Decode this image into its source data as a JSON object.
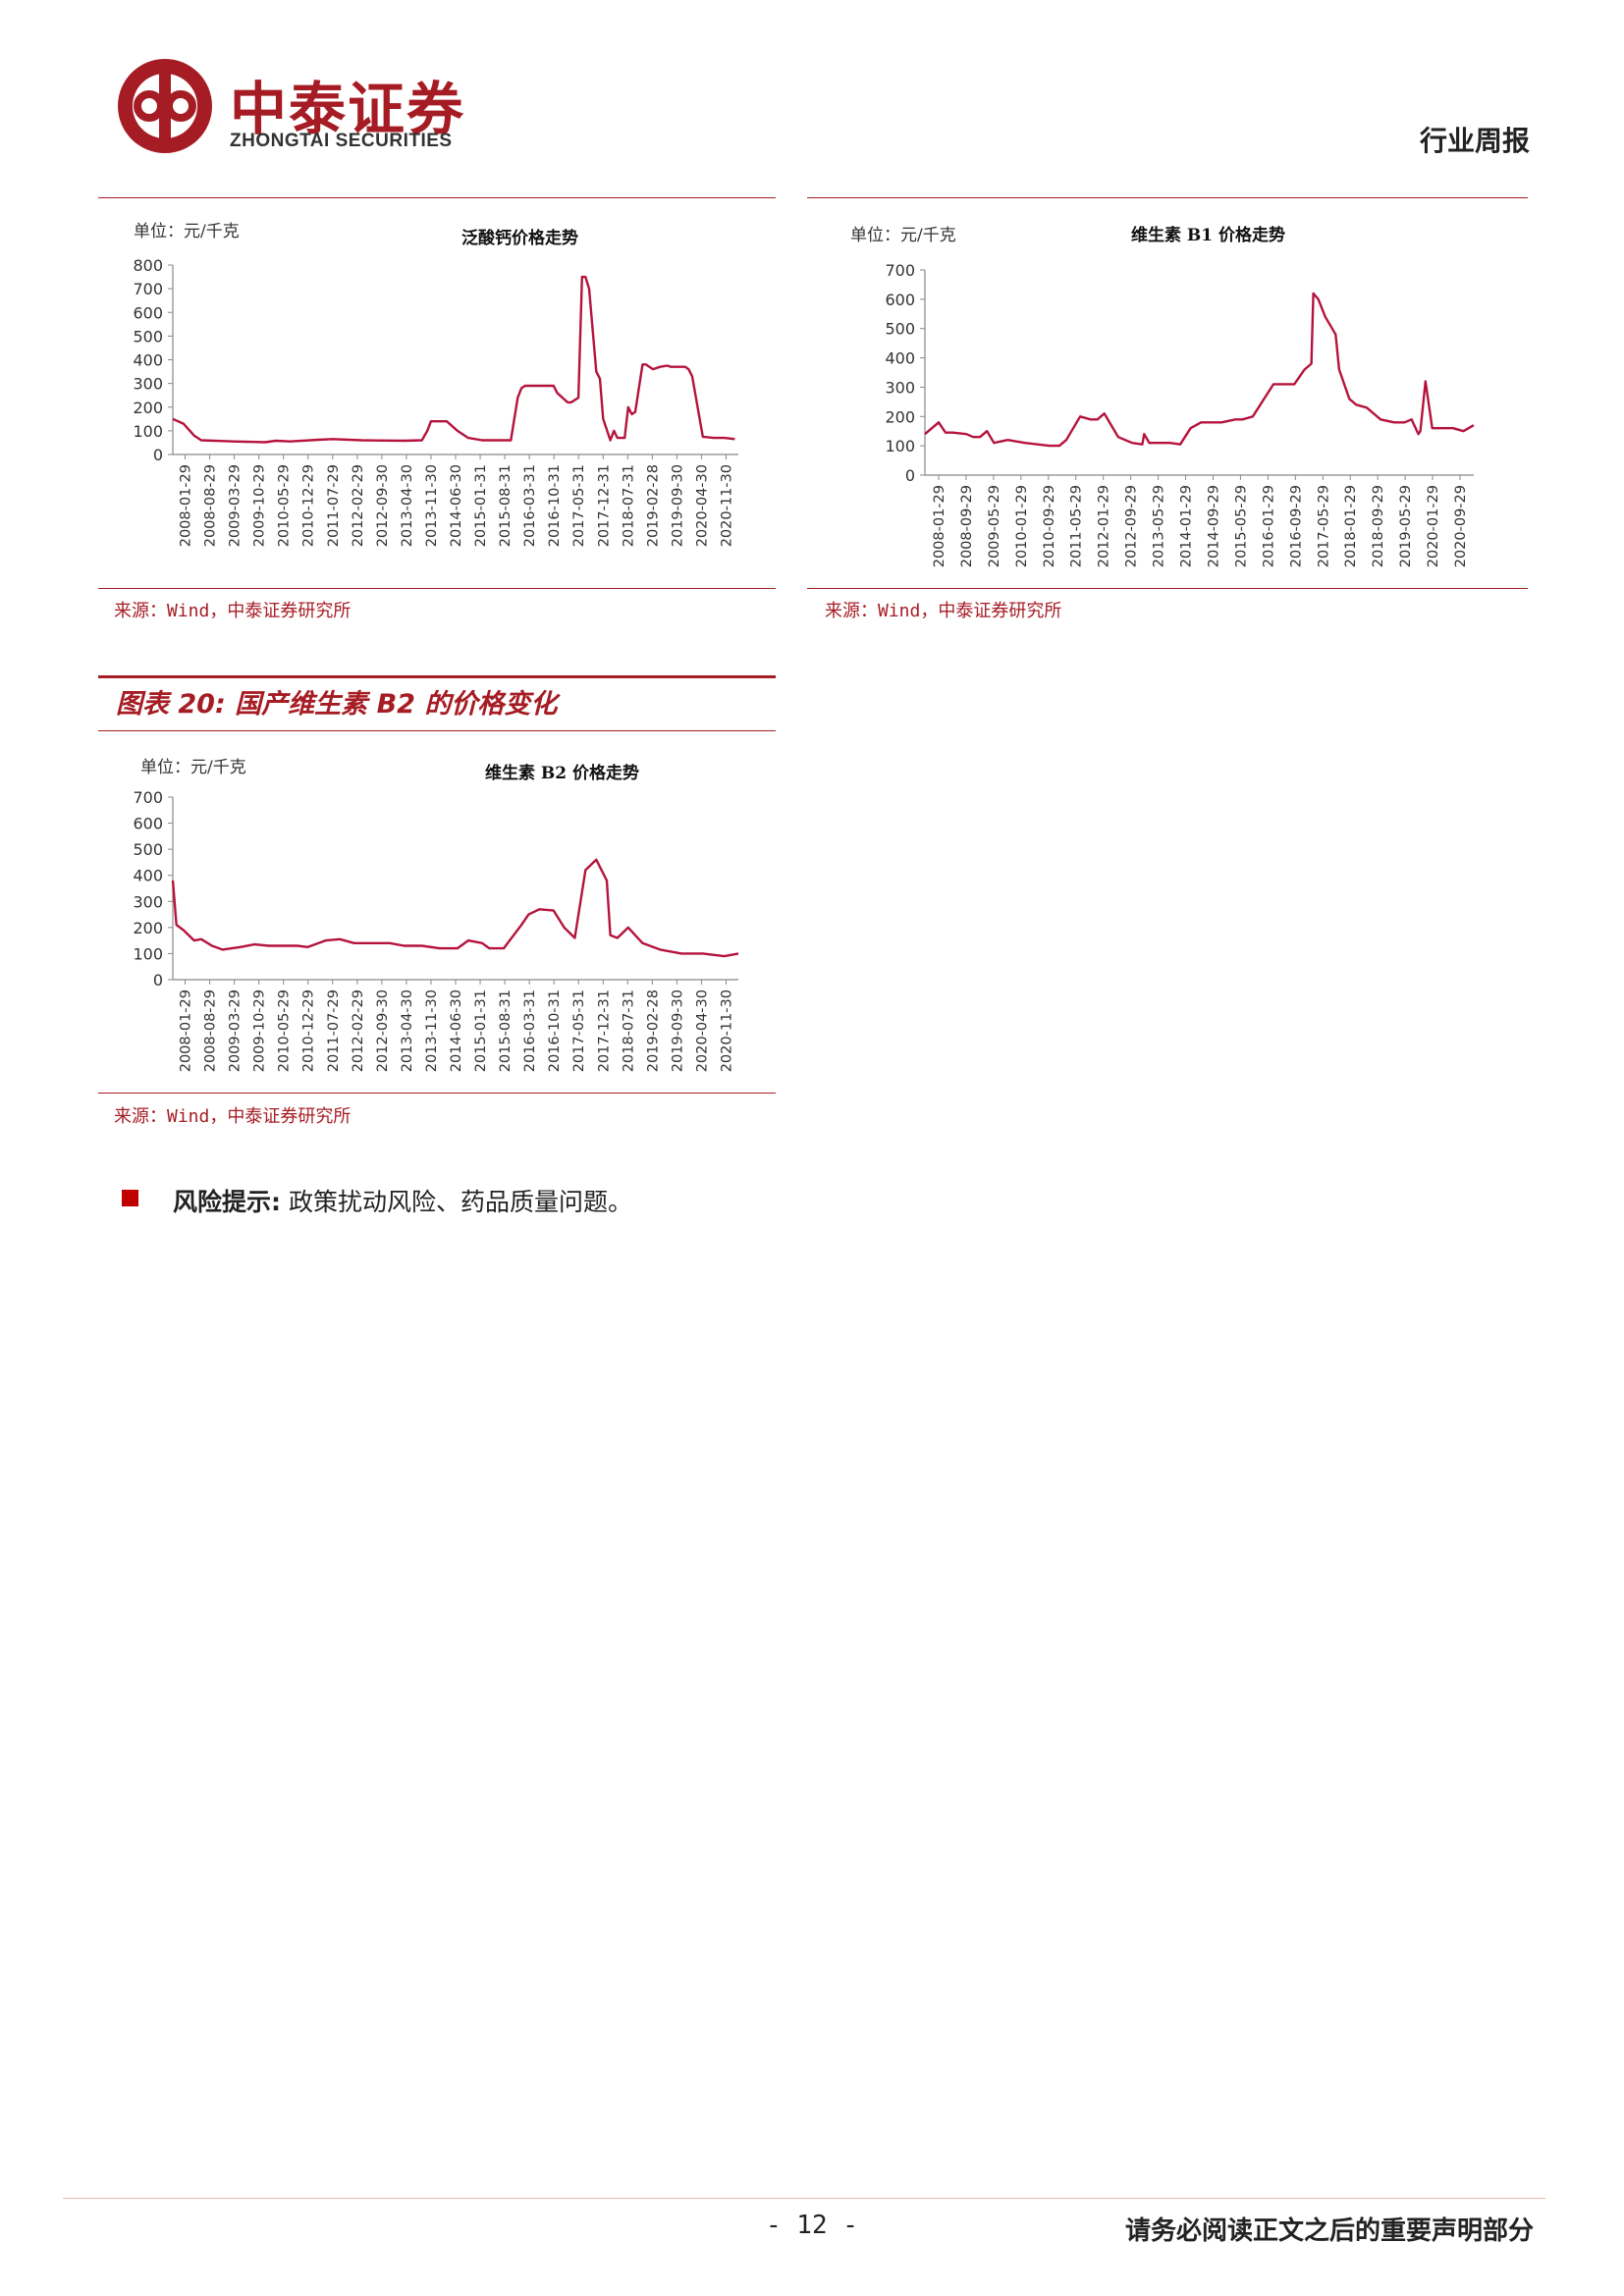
{
  "header": {
    "logo_cn": "中泰证券",
    "logo_en": "ZHONGTAI SECURITIES",
    "report_type": "行业周报"
  },
  "charts_block": {
    "figure_title": "图表 20: 国产维生素 B2 的价格变化",
    "unit_label": "单位：元/千克",
    "source": "来源：Wind，中泰证券研究所",
    "line_color": "#b5133c"
  },
  "chart_data": [
    {
      "type": "line",
      "title": "泛酸钙价格走势",
      "ylabel": "单位：元/千克",
      "ylim": [
        0,
        800
      ],
      "yticks": [
        0,
        100,
        200,
        300,
        400,
        500,
        600,
        700,
        800
      ],
      "xlim": [
        "2008-01-29",
        "2021-04-30"
      ],
      "xtick_labels": [
        "2008-01-29",
        "2008-08-29",
        "2009-03-29",
        "2009-10-29",
        "2010-05-29",
        "2010-12-29",
        "2011-07-29",
        "2012-02-29",
        "2012-09-30",
        "2013-04-30",
        "2013-11-30",
        "2014-06-30",
        "2015-01-31",
        "2015-08-31",
        "2016-03-31",
        "2016-10-31",
        "2017-05-31",
        "2017-12-31",
        "2018-07-31",
        "2019-02-28",
        "2019-09-30",
        "2020-04-30",
        "2020-11-30"
      ],
      "series": [
        {
          "x": [
            "2008-01-29",
            "2008-04-29",
            "2008-07-29",
            "2008-09-29",
            "2009-06-29",
            "2010-03-29",
            "2010-06-29",
            "2010-10-29",
            "2011-06-29",
            "2011-10-29",
            "2012-06-29",
            "2013-06-29",
            "2013-11-30",
            "2014-01-15",
            "2014-02-15",
            "2014-06-30",
            "2014-09-30",
            "2014-12-31",
            "2015-04-30",
            "2015-09-30",
            "2015-12-31",
            "2016-02-28",
            "2016-03-31",
            "2016-04-30",
            "2016-10-31",
            "2016-12-31",
            "2017-01-31",
            "2017-04-30",
            "2017-05-31",
            "2017-07-31",
            "2017-08-31",
            "2017-09-30",
            "2017-10-31",
            "2017-12-31",
            "2018-01-31",
            "2018-02-28",
            "2018-04-30",
            "2018-05-31",
            "2018-06-30",
            "2018-08-31",
            "2018-09-30",
            "2018-10-31",
            "2018-11-30",
            "2019-01-31",
            "2019-02-28",
            "2019-04-30",
            "2019-06-30",
            "2019-08-31",
            "2019-09-30",
            "2019-12-31",
            "2020-01-31",
            "2020-02-29",
            "2020-03-31",
            "2020-06-30",
            "2020-09-30",
            "2020-12-31",
            "2021-03-31"
          ],
          "y": [
            150,
            130,
            80,
            60,
            55,
            52,
            58,
            55,
            62,
            65,
            60,
            58,
            60,
            100,
            140,
            140,
            100,
            70,
            60,
            60,
            60,
            240,
            280,
            290,
            290,
            290,
            260,
            220,
            220,
            240,
            750,
            750,
            700,
            350,
            320,
            150,
            60,
            100,
            70,
            70,
            200,
            170,
            180,
            380,
            380,
            360,
            370,
            375,
            370,
            370,
            370,
            360,
            330,
            75,
            70,
            70,
            65
          ]
        }
      ]
    },
    {
      "type": "line",
      "title": "维生素 B1 价格走势",
      "ylabel": "单位：元/千克",
      "ylim": [
        0,
        700
      ],
      "yticks": [
        0,
        100,
        200,
        300,
        400,
        500,
        600,
        700
      ],
      "xlim": [
        "2008-01-29",
        "2021-04-30"
      ],
      "xtick_labels": [
        "2008-01-29",
        "2008-09-29",
        "2009-05-29",
        "2010-01-29",
        "2010-09-29",
        "2011-05-29",
        "2012-01-29",
        "2012-09-29",
        "2013-05-29",
        "2014-01-29",
        "2014-09-29",
        "2015-05-29",
        "2016-01-29",
        "2016-09-29",
        "2017-05-29",
        "2018-01-29",
        "2018-09-29",
        "2019-05-29",
        "2020-01-29",
        "2020-09-29"
      ],
      "series": [
        {
          "x": [
            "2008-01-29",
            "2008-05-29",
            "2008-07-29",
            "2008-09-29",
            "2009-01-29",
            "2009-03-29",
            "2009-05-29",
            "2009-07-29",
            "2009-09-29",
            "2010-01-29",
            "2010-06-29",
            "2011-01-29",
            "2011-04-29",
            "2011-06-29",
            "2011-10-29",
            "2012-01-29",
            "2012-03-29",
            "2012-05-29",
            "2012-09-29",
            "2013-01-29",
            "2013-04-29",
            "2013-05-15",
            "2013-06-29",
            "2013-12-29",
            "2014-03-29",
            "2014-06-29",
            "2014-09-29",
            "2015-03-29",
            "2015-07-29",
            "2015-09-29",
            "2015-12-29",
            "2016-06-29",
            "2016-09-29",
            "2016-12-29",
            "2017-03-29",
            "2017-05-29",
            "2017-06-15",
            "2017-07-29",
            "2017-09-29",
            "2017-12-29",
            "2018-01-29",
            "2018-04-29",
            "2018-06-29",
            "2018-09-29",
            "2019-01-29",
            "2019-05-29",
            "2019-08-29",
            "2019-10-29",
            "2019-12-29",
            "2020-01-15",
            "2020-02-29",
            "2020-04-29",
            "2020-10-29",
            "2021-01-29",
            "2021-04-29"
          ],
          "y": [
            140,
            180,
            145,
            145,
            140,
            130,
            130,
            150,
            110,
            120,
            110,
            100,
            100,
            120,
            200,
            190,
            190,
            210,
            130,
            110,
            105,
            140,
            110,
            110,
            105,
            160,
            180,
            180,
            190,
            190,
            200,
            310,
            310,
            310,
            360,
            380,
            620,
            600,
            540,
            480,
            360,
            260,
            240,
            230,
            190,
            180,
            180,
            190,
            140,
            150,
            320,
            160,
            160,
            150,
            170
          ]
        }
      ]
    },
    {
      "type": "line",
      "title": "维生素 B2 价格走势",
      "ylabel": "单位：元/千克",
      "ylim": [
        0,
        700
      ],
      "yticks": [
        0,
        100,
        200,
        300,
        400,
        500,
        600,
        700
      ],
      "xlim": [
        "2008-01-29",
        "2021-04-30"
      ],
      "xtick_labels": [
        "2008-01-29",
        "2008-08-29",
        "2009-03-29",
        "2009-10-29",
        "2010-05-29",
        "2010-12-29",
        "2011-07-29",
        "2012-02-29",
        "2012-09-30",
        "2013-04-30",
        "2013-11-30",
        "2014-06-30",
        "2015-01-31",
        "2015-08-31",
        "2016-03-31",
        "2016-10-31",
        "2017-05-31",
        "2017-12-31",
        "2018-07-31",
        "2019-02-28",
        "2019-09-30",
        "2020-04-30",
        "2020-11-30"
      ],
      "series": [
        {
          "x": [
            "2008-01-29",
            "2008-02-29",
            "2008-04-29",
            "2008-07-29",
            "2008-09-29",
            "2008-12-29",
            "2009-03-29",
            "2009-08-29",
            "2009-12-29",
            "2010-04-29",
            "2010-12-29",
            "2011-03-29",
            "2011-08-29",
            "2011-12-29",
            "2012-04-29",
            "2012-10-29",
            "2013-02-28",
            "2013-06-30",
            "2013-11-30",
            "2014-04-30",
            "2014-06-30",
            "2014-09-30",
            "2014-12-31",
            "2015-04-30",
            "2015-06-30",
            "2015-10-31",
            "2016-03-31",
            "2016-05-31",
            "2016-08-31",
            "2016-12-31",
            "2017-03-31",
            "2017-06-30",
            "2017-09-30",
            "2017-12-31",
            "2018-03-31",
            "2018-04-30",
            "2018-06-30",
            "2018-09-30",
            "2019-01-31",
            "2019-06-30",
            "2019-12-31",
            "2020-06-30",
            "2020-12-31",
            "2021-04-30"
          ],
          "y": [
            380,
            210,
            190,
            150,
            155,
            130,
            115,
            125,
            135,
            130,
            130,
            125,
            150,
            155,
            140,
            140,
            140,
            130,
            130,
            120,
            120,
            120,
            150,
            140,
            120,
            120,
            210,
            250,
            270,
            265,
            200,
            160,
            420,
            460,
            380,
            170,
            160,
            200,
            140,
            115,
            100,
            100,
            90,
            100
          ]
        }
      ]
    }
  ],
  "risk": {
    "label": "风险提示:",
    "text": "政策扰动风险、药品质量问题。"
  },
  "footer": {
    "page_number": "- 12 -",
    "disclaimer": "请务必阅读正文之后的重要声明部分"
  }
}
